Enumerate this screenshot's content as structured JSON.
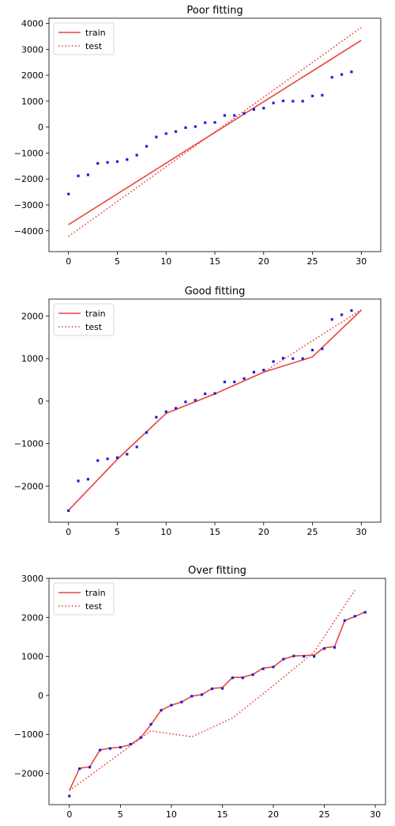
{
  "colors": {
    "train": "#e8473f",
    "test": "#e8473f",
    "points": "#1f1fd6"
  },
  "chart_data": [
    {
      "type": "line",
      "title": "Poor fitting",
      "xlim": [
        -2,
        32
      ],
      "ylim": [
        -4800,
        4200
      ],
      "xticks": [
        0,
        5,
        10,
        15,
        20,
        25,
        30
      ],
      "yticks": [
        -4000,
        -3000,
        -2000,
        -1000,
        0,
        1000,
        2000,
        3000,
        4000
      ],
      "legend_position": "top-left",
      "points": {
        "x": [
          0,
          1,
          2,
          3,
          4,
          5,
          6,
          7,
          8,
          9,
          10,
          11,
          12,
          13,
          14,
          15,
          16,
          17,
          18,
          19,
          20,
          21,
          22,
          23,
          24,
          25,
          26,
          27,
          28,
          29
        ],
        "y": [
          -2580,
          -1880,
          -1840,
          -1400,
          -1360,
          -1330,
          -1250,
          -1080,
          -740,
          -380,
          -250,
          -170,
          -20,
          20,
          170,
          180,
          450,
          450,
          530,
          680,
          730,
          930,
          1010,
          1000,
          1000,
          1200,
          1230,
          1920,
          2030,
          2130
        ]
      },
      "series": [
        {
          "name": "train",
          "style": "solid",
          "x": [
            0,
            30
          ],
          "y": [
            -3760,
            3350
          ]
        },
        {
          "name": "test",
          "style": "dotted",
          "x": [
            0,
            30
          ],
          "y": [
            -4210,
            3840
          ]
        }
      ]
    },
    {
      "type": "line",
      "title": "Good fitting",
      "xlim": [
        -2,
        32
      ],
      "ylim": [
        -2850,
        2400
      ],
      "xticks": [
        0,
        5,
        10,
        15,
        20,
        25,
        30
      ],
      "yticks": [
        -2000,
        -1000,
        0,
        1000,
        2000
      ],
      "legend_position": "top-left",
      "points": {
        "x": [
          0,
          1,
          2,
          3,
          4,
          5,
          6,
          7,
          8,
          9,
          10,
          11,
          12,
          13,
          14,
          15,
          16,
          17,
          18,
          19,
          20,
          21,
          22,
          23,
          24,
          25,
          26,
          27,
          28,
          29
        ],
        "y": [
          -2580,
          -1880,
          -1840,
          -1400,
          -1360,
          -1330,
          -1250,
          -1080,
          -740,
          -380,
          -250,
          -170,
          -20,
          20,
          170,
          180,
          450,
          450,
          530,
          680,
          730,
          930,
          1010,
          1000,
          1000,
          1200,
          1230,
          1920,
          2030,
          2130
        ]
      },
      "series": [
        {
          "name": "train",
          "style": "solid",
          "x": [
            0,
            5,
            10,
            15,
            20,
            25,
            30
          ],
          "y": [
            -2570,
            -1370,
            -290,
            170,
            680,
            1040,
            2140
          ]
        },
        {
          "name": "test",
          "style": "dotted",
          "x": [
            0,
            5,
            10,
            15,
            20,
            25,
            30
          ],
          "y": [
            -2570,
            -1370,
            -290,
            170,
            680,
            1420,
            2150
          ]
        }
      ]
    },
    {
      "type": "line",
      "title": "Over fitting",
      "xlim": [
        -2,
        31
      ],
      "ylim": [
        -2800,
        3000
      ],
      "xticks": [
        0,
        5,
        10,
        15,
        20,
        25,
        30
      ],
      "yticks": [
        -2000,
        -1000,
        0,
        1000,
        2000,
        3000
      ],
      "legend_position": "top-left",
      "points": {
        "x": [
          0,
          1,
          2,
          3,
          4,
          5,
          6,
          7,
          8,
          9,
          10,
          11,
          12,
          13,
          14,
          15,
          16,
          17,
          18,
          19,
          20,
          21,
          22,
          23,
          24,
          25,
          26,
          27,
          28,
          29
        ],
        "y": [
          -2580,
          -1880,
          -1840,
          -1400,
          -1360,
          -1330,
          -1250,
          -1080,
          -740,
          -380,
          -250,
          -170,
          -20,
          20,
          170,
          180,
          450,
          450,
          530,
          680,
          730,
          930,
          1010,
          1000,
          1000,
          1200,
          1230,
          1920,
          2030,
          2130
        ]
      },
      "series": [
        {
          "name": "train",
          "style": "solid",
          "x": [
            0,
            1,
            2,
            3,
            4,
            5,
            6,
            7,
            8,
            9,
            10,
            11,
            12,
            13,
            14,
            15,
            16,
            17,
            18,
            19,
            20,
            21,
            22,
            23,
            24,
            25,
            26,
            27,
            28,
            29
          ],
          "y": [
            -2440,
            -1870,
            -1830,
            -1400,
            -1350,
            -1330,
            -1260,
            -1080,
            -750,
            -380,
            -250,
            -170,
            -20,
            20,
            180,
            200,
            460,
            460,
            540,
            700,
            730,
            930,
            1010,
            1020,
            1030,
            1220,
            1250,
            1920,
            2020,
            2140
          ]
        },
        {
          "name": "test",
          "style": "dotted",
          "x": [
            0,
            8,
            12,
            16,
            20,
            24,
            28
          ],
          "y": [
            -2440,
            -910,
            -1060,
            -580,
            250,
            1110,
            2700
          ]
        }
      ]
    }
  ]
}
